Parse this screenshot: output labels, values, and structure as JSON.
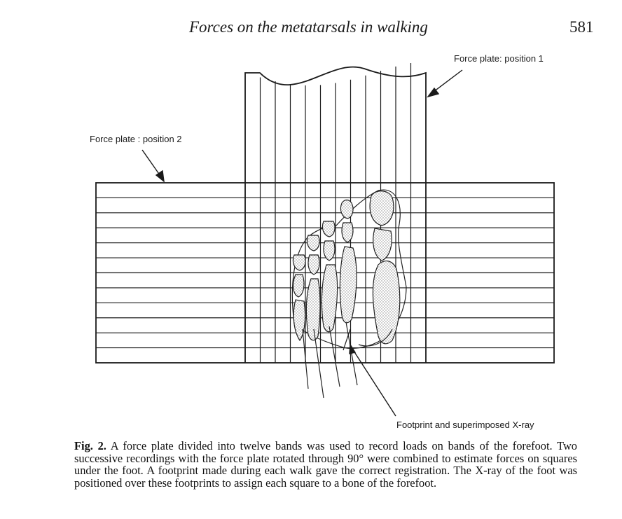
{
  "header": {
    "running_title": "Forces on the metatarsals in walking",
    "page_number": "581"
  },
  "figure": {
    "labels": {
      "position_1": "Force plate: position 1",
      "position_2": "Force plate : position 2",
      "footprint": "Footprint and superimposed X-ray"
    },
    "plate_bands": 12
  },
  "caption": {
    "label": "Fig. 2.",
    "text": "A force plate divided into twelve bands was used to record loads on bands of the forefoot. Two successive recordings with the force plate rotated through 90° were combined to estimate forces on squares under the foot. A footprint made during each walk gave the correct registration. The X-ray of the foot was positioned over these footprints to assign each square to a bone of the forefoot."
  }
}
